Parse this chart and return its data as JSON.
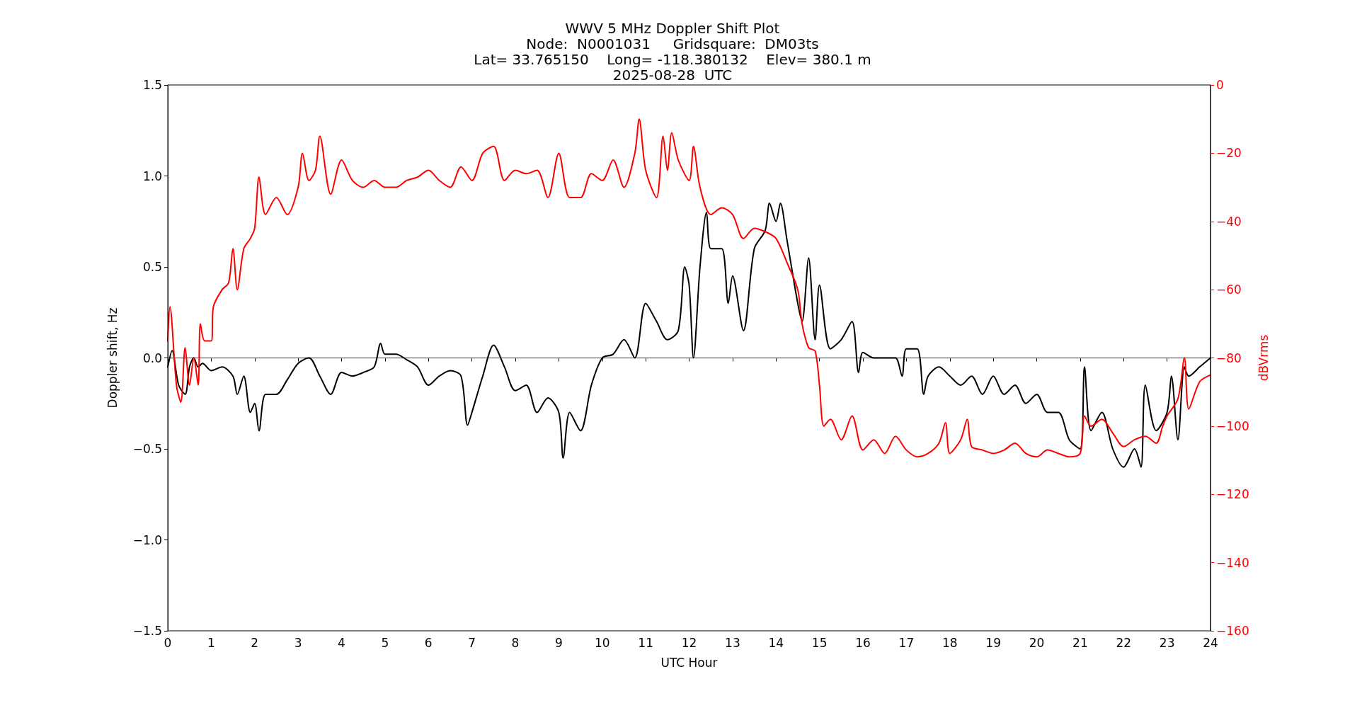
{
  "chart_data": {
    "type": "line",
    "title": "WWV 5 MHz Doppler Shift Plot",
    "subtitle": "Node:  N0001031     Gridsquare:  DM03ts\nLat= 33.765150    Long= -118.380132    Elev= 380.1 m\n2025-08-28  UTC",
    "xlabel": "UTC Hour",
    "ylabel": "Doppler shift, Hz",
    "y2label": "dBVrms",
    "xlim": [
      0,
      24
    ],
    "xticks": [
      0,
      1,
      2,
      3,
      4,
      5,
      6,
      7,
      8,
      9,
      10,
      11,
      12,
      13,
      14,
      15,
      16,
      17,
      18,
      19,
      20,
      21,
      22,
      23,
      24
    ],
    "ylim": [
      -1.5,
      1.5
    ],
    "yticks": [
      {
        "value": -1.5,
        "label": "−1.5"
      },
      {
        "value": -1,
        "label": "−1.0"
      },
      {
        "value": -0.5,
        "label": "−0.5"
      },
      {
        "value": 0,
        "label": "0.0"
      },
      {
        "value": 0.5,
        "label": "0.5"
      },
      {
        "value": 1,
        "label": "1.0"
      },
      {
        "value": 1.5,
        "label": "1.5"
      }
    ],
    "y2lim": [
      -160,
      0
    ],
    "y2ticks": [
      -160,
      -140,
      -120,
      -100,
      -80,
      -60,
      -40,
      -20,
      0
    ],
    "grid": false,
    "marker": "none",
    "line_style": "solid",
    "ref_lines": [
      {
        "axis": "y",
        "value": 0,
        "color": "#808080"
      }
    ],
    "series": [
      {
        "color": "#000000",
        "x": [
          0,
          0.1,
          0.25,
          0.4,
          0.5,
          0.6,
          0.7,
          0.8,
          1.0,
          1.25,
          1.5,
          1.6,
          1.75,
          1.9,
          2.0,
          2.1,
          2.25,
          2.5,
          2.75,
          3.0,
          3.25,
          3.5,
          3.75,
          4.0,
          4.25,
          4.5,
          4.75,
          4.9,
          5.0,
          5.25,
          5.5,
          5.75,
          6.0,
          6.25,
          6.5,
          6.75,
          6.9,
          7.0,
          7.25,
          7.5,
          7.75,
          8.0,
          8.25,
          8.5,
          8.75,
          9.0,
          9.1,
          9.25,
          9.5,
          9.75,
          10.0,
          10.25,
          10.5,
          10.75,
          11.0,
          11.25,
          11.5,
          11.75,
          11.9,
          12.0,
          12.1,
          12.25,
          12.4,
          12.5,
          12.75,
          12.9,
          13.0,
          13.25,
          13.5,
          13.75,
          13.85,
          14.0,
          14.1,
          14.25,
          14.5,
          14.6,
          14.75,
          14.9,
          15.0,
          15.25,
          15.5,
          15.75,
          15.9,
          16.0,
          16.25,
          16.5,
          16.75,
          16.9,
          17.0,
          17.25,
          17.4,
          17.5,
          17.75,
          18.0,
          18.25,
          18.5,
          18.75,
          19.0,
          19.25,
          19.5,
          19.75,
          20.0,
          20.25,
          20.5,
          20.75,
          21.0,
          21.1,
          21.25,
          21.5,
          21.75,
          22.0,
          22.25,
          22.4,
          22.5,
          22.75,
          23.0,
          23.1,
          23.25,
          23.4,
          23.5,
          23.75,
          24
        ],
        "values": [
          -0.05,
          0.04,
          -0.15,
          -0.2,
          -0.05,
          0,
          -0.05,
          -0.03,
          -0.07,
          -0.05,
          -0.1,
          -0.2,
          -0.1,
          -0.3,
          -0.25,
          -0.4,
          -0.2,
          -0.2,
          -0.12,
          -0.03,
          0.0,
          -0.1,
          -0.2,
          -0.08,
          -0.1,
          -0.08,
          -0.05,
          0.08,
          0.02,
          0.02,
          -0.01,
          -0.05,
          -0.15,
          -0.1,
          -0.07,
          -0.1,
          -0.37,
          -0.3,
          -0.1,
          0.07,
          -0.05,
          -0.18,
          -0.15,
          -0.3,
          -0.22,
          -0.3,
          -0.55,
          -0.3,
          -0.4,
          -0.15,
          0.0,
          0.02,
          0.1,
          0.0,
          0.3,
          0.2,
          0.1,
          0.15,
          0.5,
          0.4,
          0.0,
          0.5,
          0.8,
          0.6,
          0.6,
          0.3,
          0.45,
          0.15,
          0.6,
          0.7,
          0.85,
          0.75,
          0.85,
          0.65,
          0.3,
          0.2,
          0.55,
          0.1,
          0.4,
          0.05,
          0.1,
          0.2,
          -0.08,
          0.03,
          0.0,
          0.0,
          0.0,
          -0.1,
          0.05,
          0.05,
          -0.2,
          -0.1,
          -0.05,
          -0.1,
          -0.15,
          -0.1,
          -0.2,
          -0.1,
          -0.2,
          -0.15,
          -0.25,
          -0.2,
          -0.3,
          -0.3,
          -0.45,
          -0.5,
          -0.05,
          -0.4,
          -0.3,
          -0.5,
          -0.6,
          -0.5,
          -0.6,
          -0.15,
          -0.4,
          -0.3,
          -0.1,
          -0.45,
          -0.05,
          -0.1,
          -0.05,
          0.0
        ]
      },
      {
        "color": "#ff0000",
        "axis": "y2",
        "x": [
          0,
          0.05,
          0.2,
          0.3,
          0.4,
          0.5,
          0.6,
          0.7,
          0.75,
          0.85,
          1.0,
          1.05,
          1.25,
          1.4,
          1.5,
          1.6,
          1.75,
          1.9,
          2.0,
          2.1,
          2.25,
          2.5,
          2.75,
          3.0,
          3.1,
          3.25,
          3.4,
          3.5,
          3.75,
          4.0,
          4.25,
          4.5,
          4.75,
          5.0,
          5.25,
          5.5,
          5.75,
          6.0,
          6.25,
          6.5,
          6.75,
          7.0,
          7.25,
          7.5,
          7.75,
          8.0,
          8.25,
          8.5,
          8.75,
          9.0,
          9.25,
          9.5,
          9.75,
          10.0,
          10.25,
          10.5,
          10.75,
          10.85,
          11.0,
          11.25,
          11.4,
          11.5,
          11.6,
          11.75,
          12.0,
          12.1,
          12.25,
          12.5,
          12.75,
          13.0,
          13.25,
          13.5,
          13.75,
          14.0,
          14.25,
          14.5,
          14.6,
          14.75,
          14.9,
          15.0,
          15.1,
          15.25,
          15.5,
          15.75,
          16.0,
          16.25,
          16.5,
          16.75,
          17.0,
          17.25,
          17.5,
          17.75,
          17.9,
          18.0,
          18.25,
          18.4,
          18.5,
          18.75,
          19.0,
          19.25,
          19.5,
          19.75,
          20.0,
          20.25,
          20.5,
          20.75,
          21.0,
          21.1,
          21.25,
          21.5,
          21.75,
          22.0,
          22.25,
          22.5,
          22.75,
          22.9,
          23.0,
          23.25,
          23.4,
          23.5,
          23.75,
          24
        ],
        "values": [
          -75,
          -65,
          -88,
          -93,
          -77,
          -88,
          -80,
          -88,
          -70,
          -75,
          -75,
          -65,
          -60,
          -58,
          -48,
          -60,
          -48,
          -45,
          -42,
          -27,
          -38,
          -33,
          -38,
          -30,
          -20,
          -28,
          -25,
          -15,
          -32,
          -22,
          -28,
          -30,
          -28,
          -30,
          -30,
          -28,
          -27,
          -25,
          -28,
          -30,
          -24,
          -28,
          -20,
          -18,
          -28,
          -25,
          -26,
          -25,
          -33,
          -20,
          -33,
          -33,
          -26,
          -28,
          -22,
          -30,
          -20,
          -10,
          -25,
          -33,
          -15,
          -25,
          -14,
          -22,
          -28,
          -18,
          -30,
          -38,
          -36,
          -38,
          -45,
          -42,
          -43,
          -45,
          -52,
          -60,
          -70,
          -77,
          -78,
          -88,
          -100,
          -98,
          -104,
          -97,
          -107,
          -104,
          -108,
          -103,
          -107,
          -109,
          -108,
          -105,
          -99,
          -108,
          -104,
          -98,
          -106,
          -107,
          -108,
          -107,
          -105,
          -108,
          -109,
          -107,
          -108,
          -109,
          -108,
          -97,
          -100,
          -98,
          -102,
          -106,
          -104,
          -103,
          -105,
          -100,
          -97,
          -92,
          -80,
          -95,
          -87,
          -85
        ]
      }
    ]
  }
}
